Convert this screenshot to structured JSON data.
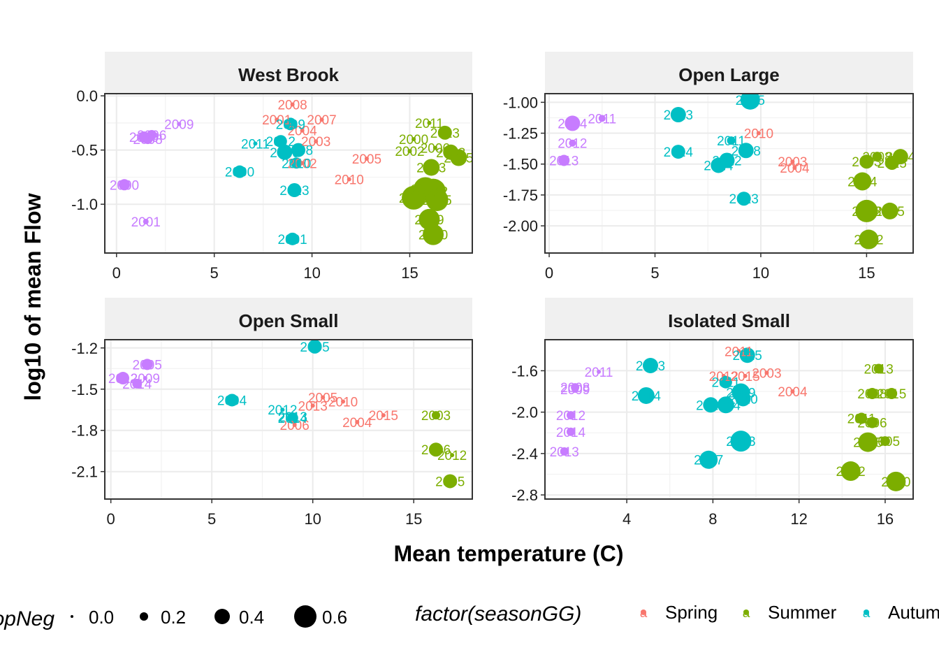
{
  "chart_data": {
    "type": "scatter",
    "xlabel": "Mean temperature (C)",
    "ylabel": "log10 of mean Flow",
    "colors": {
      "Spring": "#F8766D",
      "Summer": "#7CAE00",
      "Autumn": "#00BFC4",
      "Winter": "#C77CFF"
    },
    "size_legend": {
      "title": "propNeg",
      "values": [
        "0.0",
        "0.2",
        "0.4",
        "0.6"
      ]
    },
    "color_legend": {
      "title": "factor(seasonGG)",
      "entries": [
        "Spring",
        "Summer",
        "Autumn"
      ]
    },
    "panels": [
      {
        "name": "West Brook",
        "xlim": [
          -0.6,
          18.2
        ],
        "ylim": [
          -1.45,
          0.02
        ],
        "xticks": [
          0,
          5,
          10,
          15
        ],
        "yticks": [
          0.0,
          -0.5,
          -1.0
        ],
        "ytick_labels": [
          "0.0",
          "-0.5",
          "-1.0"
        ],
        "points": [
          {
            "s": "Winter",
            "x": 1.4,
            "y": -0.38,
            "r": 8,
            "l": "2010"
          },
          {
            "s": "Winter",
            "x": 1.6,
            "y": -0.4,
            "r": 7,
            "l": "2008"
          },
          {
            "s": "Winter",
            "x": 1.8,
            "y": -0.36,
            "r": 7,
            "l": "2006"
          },
          {
            "s": "Winter",
            "x": 3.2,
            "y": -0.26,
            "r": 3,
            "l": "2009"
          },
          {
            "s": "Winter",
            "x": 0.4,
            "y": -0.82,
            "r": 8,
            "l": "2000"
          },
          {
            "s": "Winter",
            "x": 1.5,
            "y": -1.16,
            "r": 4,
            "l": "2001"
          },
          {
            "s": "Spring",
            "x": 9.0,
            "y": -0.08,
            "r": 3,
            "l": "2008"
          },
          {
            "s": "Spring",
            "x": 8.2,
            "y": -0.22,
            "r": 3,
            "l": "2001"
          },
          {
            "s": "Spring",
            "x": 10.5,
            "y": -0.22,
            "r": 3,
            "l": "2007"
          },
          {
            "s": "Spring",
            "x": 9.5,
            "y": -0.32,
            "r": 3,
            "l": "2004"
          },
          {
            "s": "Spring",
            "x": 10.2,
            "y": -0.42,
            "r": 3,
            "l": "2003"
          },
          {
            "s": "Spring",
            "x": 12.8,
            "y": -0.58,
            "r": 3,
            "l": "2005"
          },
          {
            "s": "Spring",
            "x": 11.9,
            "y": -0.77,
            "r": 3,
            "l": "2010"
          },
          {
            "s": "Spring",
            "x": 9.5,
            "y": -0.62,
            "r": 3,
            "l": "2002"
          },
          {
            "s": "Autumn",
            "x": 8.9,
            "y": -0.26,
            "r": 9,
            "l": "2009"
          },
          {
            "s": "Autumn",
            "x": 8.4,
            "y": -0.42,
            "r": 9,
            "l": "2012"
          },
          {
            "s": "Autumn",
            "x": 8.6,
            "y": -0.52,
            "r": 11,
            "l": "2006"
          },
          {
            "s": "Autumn",
            "x": 9.3,
            "y": -0.5,
            "r": 10,
            "l": "2008"
          },
          {
            "s": "Autumn",
            "x": 9.2,
            "y": -0.62,
            "r": 8,
            "l": "2010"
          },
          {
            "s": "Autumn",
            "x": 7.1,
            "y": -0.44,
            "r": 3,
            "l": "2011"
          },
          {
            "s": "Autumn",
            "x": 6.3,
            "y": -0.7,
            "r": 9,
            "l": "2000"
          },
          {
            "s": "Autumn",
            "x": 9.1,
            "y": -0.87,
            "r": 10,
            "l": "2013"
          },
          {
            "s": "Autumn",
            "x": 9.0,
            "y": -1.32,
            "r": 9,
            "l": "2001"
          },
          {
            "s": "Summer",
            "x": 16.0,
            "y": -0.25,
            "r": 3,
            "l": "2011"
          },
          {
            "s": "Summer",
            "x": 16.8,
            "y": -0.34,
            "r": 10,
            "l": "2013"
          },
          {
            "s": "Summer",
            "x": 15.2,
            "y": -0.4,
            "r": 3,
            "l": "2000"
          },
          {
            "s": "Summer",
            "x": 16.3,
            "y": -0.48,
            "r": 3,
            "l": "2006"
          },
          {
            "s": "Summer",
            "x": 15.0,
            "y": -0.51,
            "r": 3,
            "l": "2002"
          },
          {
            "s": "Summer",
            "x": 17.1,
            "y": -0.52,
            "r": 11,
            "l": "2003"
          },
          {
            "s": "Summer",
            "x": 17.5,
            "y": -0.57,
            "r": 12,
            "l": "2005"
          },
          {
            "s": "Summer",
            "x": 16.1,
            "y": -0.66,
            "r": 12,
            "l": "2013"
          },
          {
            "s": "Summer",
            "x": 15.8,
            "y": -0.86,
            "r": 17,
            "l": "2003"
          },
          {
            "s": "Summer",
            "x": 16.2,
            "y": -0.88,
            "r": 18,
            "l": "2012"
          },
          {
            "s": "Summer",
            "x": 15.2,
            "y": -0.94,
            "r": 17,
            "l": "2008"
          },
          {
            "s": "Summer",
            "x": 16.4,
            "y": -0.96,
            "r": 16,
            "l": "2015"
          },
          {
            "s": "Summer",
            "x": 16.0,
            "y": -1.14,
            "r": 15,
            "l": "2009"
          },
          {
            "s": "Summer",
            "x": 16.2,
            "y": -1.28,
            "r": 15,
            "l": "2010"
          }
        ]
      },
      {
        "name": "Open Large",
        "xlim": [
          -0.2,
          17.2
        ],
        "ylim": [
          -2.22,
          -0.93
        ],
        "xticks": [
          0,
          5,
          10,
          15
        ],
        "yticks": [
          -1.0,
          -1.25,
          -1.5,
          -1.75,
          -2.0
        ],
        "ytick_labels": [
          "-1.00",
          "-1.25",
          "-1.50",
          "-1.75",
          "-2.00"
        ],
        "points": [
          {
            "s": "Winter",
            "x": 1.1,
            "y": -1.17,
            "r": 11,
            "l": "2004"
          },
          {
            "s": "Winter",
            "x": 2.5,
            "y": -1.13,
            "r": 5,
            "l": "2011"
          },
          {
            "s": "Winter",
            "x": 1.1,
            "y": -1.33,
            "r": 5,
            "l": "2012"
          },
          {
            "s": "Winter",
            "x": 0.7,
            "y": -1.47,
            "r": 8,
            "l": "2013"
          },
          {
            "s": "Spring",
            "x": 9.9,
            "y": -1.25,
            "r": 3,
            "l": "2010"
          },
          {
            "s": "Spring",
            "x": 11.5,
            "y": -1.48,
            "r": 3,
            "l": "2003"
          },
          {
            "s": "Spring",
            "x": 11.6,
            "y": -1.53,
            "r": 3,
            "l": "2004"
          },
          {
            "s": "Autumn",
            "x": 9.5,
            "y": -0.98,
            "r": 14,
            "l": "2005"
          },
          {
            "s": "Autumn",
            "x": 6.1,
            "y": -1.1,
            "r": 11,
            "l": "2013"
          },
          {
            "s": "Autumn",
            "x": 6.1,
            "y": -1.4,
            "r": 10,
            "l": "2014"
          },
          {
            "s": "Autumn",
            "x": 8.6,
            "y": -1.31,
            "r": 6,
            "l": "2011"
          },
          {
            "s": "Autumn",
            "x": 9.3,
            "y": -1.39,
            "r": 11,
            "l": "2008"
          },
          {
            "s": "Autumn",
            "x": 8.4,
            "y": -1.47,
            "r": 11,
            "l": "2012"
          },
          {
            "s": "Autumn",
            "x": 8.0,
            "y": -1.51,
            "r": 11,
            "l": "2014"
          },
          {
            "s": "Autumn",
            "x": 9.2,
            "y": -1.78,
            "r": 10,
            "l": "2013"
          },
          {
            "s": "Summer",
            "x": 15.5,
            "y": -1.44,
            "r": 7,
            "l": "2008"
          },
          {
            "s": "Summer",
            "x": 16.6,
            "y": -1.44,
            "r": 11,
            "l": "2014"
          },
          {
            "s": "Summer",
            "x": 15.0,
            "y": -1.48,
            "r": 10,
            "l": "2003"
          },
          {
            "s": "Summer",
            "x": 16.2,
            "y": -1.49,
            "r": 10,
            "l": "2015"
          },
          {
            "s": "Summer",
            "x": 14.8,
            "y": -1.64,
            "r": 13,
            "l": "2004"
          },
          {
            "s": "Summer",
            "x": 15.0,
            "y": -1.88,
            "r": 16,
            "l": "2013"
          },
          {
            "s": "Summer",
            "x": 16.1,
            "y": -1.88,
            "r": 12,
            "l": "2015"
          },
          {
            "s": "Summer",
            "x": 15.1,
            "y": -2.11,
            "r": 14,
            "l": "2012"
          }
        ]
      },
      {
        "name": "Open Small",
        "xlim": [
          -0.3,
          17.9
        ],
        "ylim": [
          -2.3,
          -1.14
        ],
        "xticks": [
          0,
          5,
          10,
          15
        ],
        "yticks": [
          -1.2,
          -1.5,
          -1.8,
          -2.1
        ],
        "ytick_labels": [
          "-1.2",
          "-1.5",
          "-1.8",
          "-2.1"
        ],
        "points": [
          {
            "s": "Winter",
            "x": 1.8,
            "y": -1.32,
            "r": 8,
            "l": "2005"
          },
          {
            "s": "Winter",
            "x": 0.6,
            "y": -1.42,
            "r": 9,
            "l": "2012"
          },
          {
            "s": "Winter",
            "x": 1.7,
            "y": -1.42,
            "r": 3,
            "l": "2009"
          },
          {
            "s": "Winter",
            "x": 1.3,
            "y": -1.46,
            "r": 7,
            "l": "2014"
          },
          {
            "s": "Spring",
            "x": 10.5,
            "y": -1.56,
            "r": 3,
            "l": "2005"
          },
          {
            "s": "Spring",
            "x": 11.5,
            "y": -1.59,
            "r": 3,
            "l": "2010"
          },
          {
            "s": "Spring",
            "x": 10.0,
            "y": -1.62,
            "r": 3,
            "l": "2013"
          },
          {
            "s": "Spring",
            "x": 13.5,
            "y": -1.69,
            "r": 3,
            "l": "2015"
          },
          {
            "s": "Spring",
            "x": 12.2,
            "y": -1.74,
            "r": 3,
            "l": "2004"
          },
          {
            "s": "Spring",
            "x": 9.1,
            "y": -1.76,
            "r": 3,
            "l": "2006"
          },
          {
            "s": "Autumn",
            "x": 10.1,
            "y": -1.19,
            "r": 10,
            "l": "2005"
          },
          {
            "s": "Autumn",
            "x": 6.0,
            "y": -1.58,
            "r": 9,
            "l": "2004"
          },
          {
            "s": "Autumn",
            "x": 8.5,
            "y": -1.65,
            "r": 3,
            "l": "2012"
          },
          {
            "s": "Autumn",
            "x": 9.0,
            "y": -1.7,
            "r": 3,
            "l": "2013"
          },
          {
            "s": "Autumn",
            "x": 9.0,
            "y": -1.71,
            "r": 8,
            "l": "2014"
          },
          {
            "s": "Summer",
            "x": 16.1,
            "y": -1.69,
            "r": 6,
            "l": "2003"
          },
          {
            "s": "Summer",
            "x": 16.1,
            "y": -1.94,
            "r": 10,
            "l": "2006"
          },
          {
            "s": "Summer",
            "x": 16.9,
            "y": -1.98,
            "r": 3,
            "l": "2012"
          },
          {
            "s": "Summer",
            "x": 16.8,
            "y": -2.17,
            "r": 10,
            "l": "2005"
          }
        ]
      },
      {
        "name": "Isolated Small",
        "xlim": [
          0.2,
          17.3
        ],
        "ylim": [
          -2.84,
          -1.3
        ],
        "xticks": [
          4,
          8,
          12,
          16
        ],
        "yticks": [
          -1.6,
          -2.0,
          -2.4,
          -2.8
        ],
        "ytick_labels": [
          "-1.6",
          "-2.0",
          "-2.4",
          "-2.8"
        ],
        "points": [
          {
            "s": "Winter",
            "x": 2.7,
            "y": -1.61,
            "r": 3,
            "l": "2011"
          },
          {
            "s": "Winter",
            "x": 1.6,
            "y": -1.76,
            "r": 6,
            "l": "2008"
          },
          {
            "s": "Winter",
            "x": 1.6,
            "y": -1.78,
            "r": 5,
            "l": "2009"
          },
          {
            "s": "Winter",
            "x": 1.4,
            "y": -2.03,
            "r": 6,
            "l": "2012"
          },
          {
            "s": "Winter",
            "x": 1.4,
            "y": -2.19,
            "r": 6,
            "l": "2014"
          },
          {
            "s": "Winter",
            "x": 1.1,
            "y": -2.38,
            "r": 6,
            "l": "2013"
          },
          {
            "s": "Spring",
            "x": 9.2,
            "y": -1.41,
            "r": 3,
            "l": "2011"
          },
          {
            "s": "Spring",
            "x": 10.5,
            "y": -1.62,
            "r": 3,
            "l": "2003"
          },
          {
            "s": "Spring",
            "x": 9.5,
            "y": -1.65,
            "r": 3,
            "l": "2015"
          },
          {
            "s": "Spring",
            "x": 8.5,
            "y": -1.65,
            "r": 3,
            "l": "2012"
          },
          {
            "s": "Spring",
            "x": 11.7,
            "y": -1.8,
            "r": 3,
            "l": "2004"
          },
          {
            "s": "Autumn",
            "x": 9.6,
            "y": -1.45,
            "r": 11,
            "l": "2015"
          },
          {
            "s": "Autumn",
            "x": 5.1,
            "y": -1.55,
            "r": 11,
            "l": "2013"
          },
          {
            "s": "Autumn",
            "x": 8.6,
            "y": -1.71,
            "r": 9,
            "l": "2011"
          },
          {
            "s": "Autumn",
            "x": 4.9,
            "y": -1.84,
            "r": 12,
            "l": "2014"
          },
          {
            "s": "Autumn",
            "x": 9.3,
            "y": -1.81,
            "r": 13,
            "l": "2009"
          },
          {
            "s": "Autumn",
            "x": 9.4,
            "y": -1.87,
            "r": 11,
            "l": "2010"
          },
          {
            "s": "Autumn",
            "x": 7.9,
            "y": -1.93,
            "r": 11,
            "l": "2014"
          },
          {
            "s": "Autumn",
            "x": 8.6,
            "y": -1.93,
            "r": 12,
            "l": "2014"
          },
          {
            "s": "Autumn",
            "x": 9.3,
            "y": -2.28,
            "r": 15,
            "l": "2013"
          },
          {
            "s": "Autumn",
            "x": 7.8,
            "y": -2.46,
            "r": 13,
            "l": "2007"
          },
          {
            "s": "Summer",
            "x": 15.7,
            "y": -1.58,
            "r": 7,
            "l": "2013"
          },
          {
            "s": "Summer",
            "x": 15.4,
            "y": -1.82,
            "r": 8,
            "l": "2008"
          },
          {
            "s": "Summer",
            "x": 16.3,
            "y": -1.82,
            "r": 8,
            "l": "2015"
          },
          {
            "s": "Summer",
            "x": 14.9,
            "y": -2.06,
            "r": 8,
            "l": "2011"
          },
          {
            "s": "Summer",
            "x": 15.4,
            "y": -2.1,
            "r": 8,
            "l": "2006"
          },
          {
            "s": "Summer",
            "x": 16.0,
            "y": -2.28,
            "r": 7,
            "l": "2005"
          },
          {
            "s": "Summer",
            "x": 15.2,
            "y": -2.29,
            "r": 14,
            "l": "2015"
          },
          {
            "s": "Summer",
            "x": 14.4,
            "y": -2.57,
            "r": 14,
            "l": "2012"
          },
          {
            "s": "Summer",
            "x": 16.5,
            "y": -2.67,
            "r": 14,
            "l": "2010"
          }
        ]
      }
    ]
  }
}
